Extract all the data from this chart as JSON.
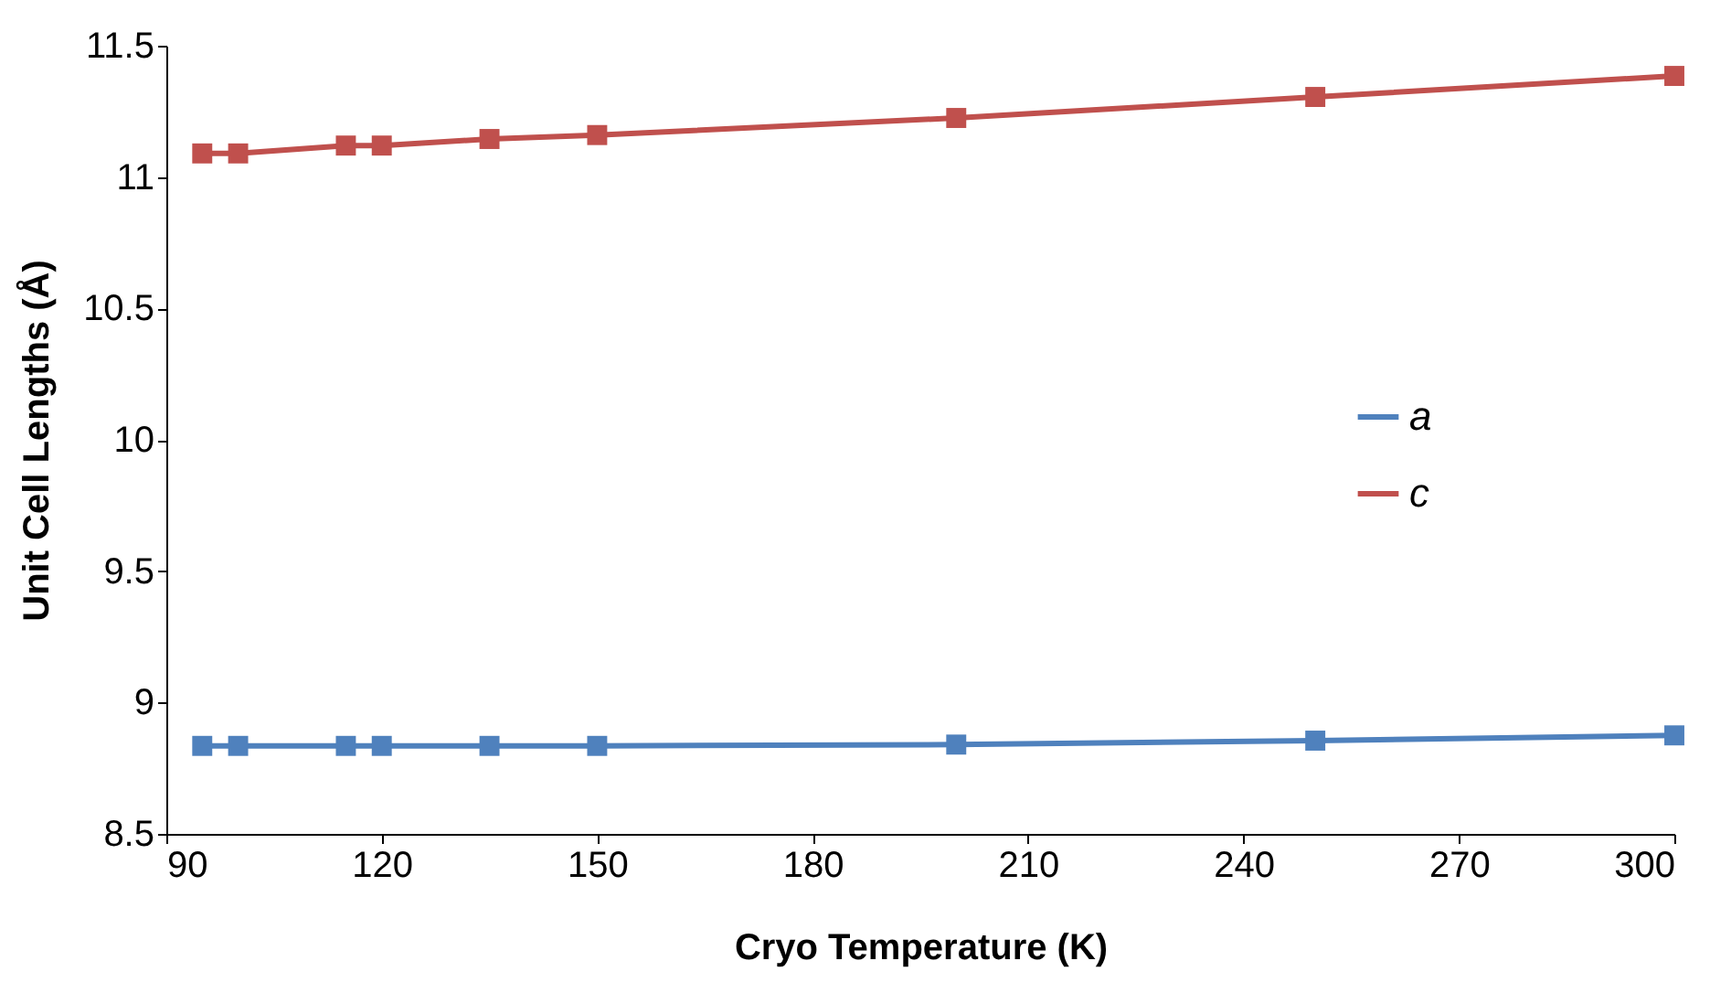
{
  "chart_data": {
    "type": "line",
    "xlabel": "Cryo Temperature (K)",
    "ylabel": "Unit Cell Lengths (Å)",
    "x": [
      95,
      100,
      115,
      120,
      135,
      150,
      200,
      250,
      300
    ],
    "series": [
      {
        "name": "a",
        "color": "#4f81bd",
        "values": [
          8.835,
          8.835,
          8.835,
          8.835,
          8.835,
          8.835,
          8.84,
          8.855,
          8.875
        ]
      },
      {
        "name": "c",
        "color": "#c0504d",
        "values": [
          11.09,
          11.09,
          11.12,
          11.12,
          11.145,
          11.16,
          11.225,
          11.305,
          11.385
        ]
      }
    ],
    "xlim": [
      90,
      300
    ],
    "xticks": [
      90,
      120,
      150,
      180,
      210,
      240,
      270,
      300
    ],
    "ylim": [
      8.5,
      11.5
    ],
    "yticks": [
      8.5,
      9,
      9.5,
      10,
      10.5,
      11,
      11.5
    ],
    "grid": false,
    "legend": "right",
    "marker": "square",
    "line_style": "solid"
  }
}
